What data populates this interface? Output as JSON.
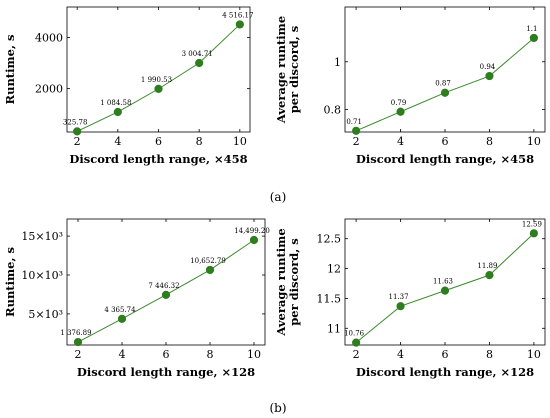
{
  "captions": [
    "(a)",
    "(b)"
  ],
  "colors": {
    "series": "#3a8a2a",
    "marker": "#2e7d1f",
    "axis": "#000000"
  },
  "chart_data": [
    {
      "type": "line",
      "x": [
        2,
        4,
        6,
        8,
        10
      ],
      "y": [
        325.78,
        1084.58,
        1990.53,
        3004.71,
        4516.17
      ],
      "point_labels": [
        "325.78",
        "1 084.58",
        "1 990.53",
        "3 004.71",
        "4 516.17"
      ],
      "xlabel": "Discord length range, ×458",
      "ylabel": [
        "Runtime,  s"
      ],
      "xticks": [
        2,
        4,
        6,
        8,
        10
      ],
      "yticks": [
        2000,
        4000
      ],
      "ytick_labels": [
        "2000",
        "4000"
      ],
      "xlim": [
        1.5,
        10.5
      ],
      "ylim": [
        300,
        5200
      ]
    },
    {
      "type": "line",
      "x": [
        2,
        4,
        6,
        8,
        10
      ],
      "y": [
        0.71,
        0.79,
        0.87,
        0.94,
        1.1
      ],
      "point_labels": [
        "0.71",
        "0.79",
        "0.87",
        "0.94",
        "1.1"
      ],
      "xlabel": "Discord length range, ×458",
      "ylabel": [
        "Average  runtime",
        "per discord,  s"
      ],
      "xticks": [
        2,
        4,
        6,
        8,
        10
      ],
      "yticks": [
        0.8,
        1.0
      ],
      "ytick_labels": [
        "0.8",
        "1"
      ],
      "xlim": [
        1.5,
        10.5
      ],
      "ylim": [
        0.705,
        1.23
      ]
    },
    {
      "type": "line",
      "x": [
        2,
        4,
        6,
        8,
        10
      ],
      "y": [
        1376.89,
        4365.74,
        7446.32,
        10652.79,
        14499.2
      ],
      "point_labels": [
        "1 376.89",
        "4 365.74",
        "7 446.32",
        "10,652.79",
        "14,499.20"
      ],
      "xlabel": "Discord length range, ×128",
      "ylabel": [
        "Runtime,  s"
      ],
      "xticks": [
        2,
        4,
        6,
        8,
        10
      ],
      "yticks": [
        5000,
        10000,
        15000
      ],
      "ytick_labels": [
        "5×10³",
        "10×10³",
        "15×10³"
      ],
      "xlim": [
        1.5,
        10.5
      ],
      "ylim": [
        1000,
        17200
      ]
    },
    {
      "type": "line",
      "x": [
        2,
        4,
        6,
        8,
        10
      ],
      "y": [
        10.76,
        11.37,
        11.63,
        11.89,
        12.59
      ],
      "point_labels": [
        "10.76",
        "11.37",
        "11.63",
        "11.89",
        "12.59"
      ],
      "xlabel": "Discord length range, ×128",
      "ylabel": [
        "Average  runtime",
        "per discord,  s"
      ],
      "xticks": [
        2,
        4,
        6,
        8,
        10
      ],
      "yticks": [
        11,
        11.5,
        12,
        12.5
      ],
      "ytick_labels": [
        "11",
        "11.5",
        "12",
        "12.5"
      ],
      "xlim": [
        1.5,
        10.5
      ],
      "ylim": [
        10.72,
        12.83
      ]
    }
  ]
}
